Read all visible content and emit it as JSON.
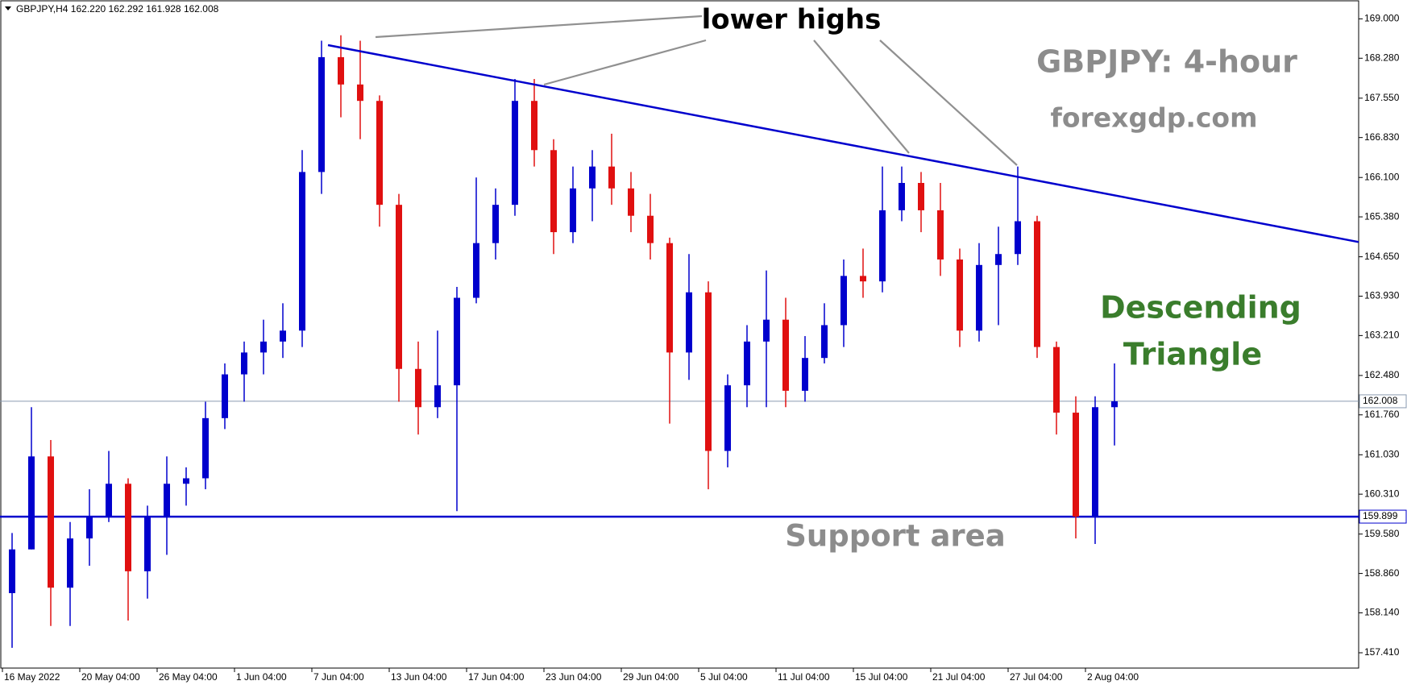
{
  "chart_data": {
    "type": "candlestick",
    "header": "GBPJPY,H4  162.220 162.292 161.928 162.008",
    "categories": [
      "16 May 2022",
      null,
      null,
      null,
      "20 May 04:00",
      null,
      null,
      null,
      "26 May 04:00",
      null,
      null,
      null,
      "1 Jun 04:00",
      null,
      null,
      null,
      "7 Jun 04:00",
      null,
      null,
      null,
      "13 Jun 04:00",
      null,
      null,
      null,
      "17 Jun 04:00",
      null,
      null,
      null,
      "23 Jun 04:00",
      null,
      null,
      null,
      "29 Jun 04:00",
      null,
      null,
      null,
      "5 Jul 04:00",
      null,
      null,
      null,
      "11 Jul 04:00",
      null,
      null,
      null,
      "15 Jul 04:00",
      null,
      null,
      null,
      "21 Jul 04:00",
      null,
      null,
      null,
      "27 Jul 04:00",
      null,
      null,
      null,
      "2 Aug 04:00",
      null
    ],
    "open": [
      158.5,
      159.3,
      161.0,
      158.6,
      159.5,
      159.9,
      160.5,
      158.9,
      159.9,
      160.5,
      160.6,
      161.7,
      162.5,
      162.9,
      163.1,
      163.3,
      166.2,
      168.3,
      167.8,
      167.5,
      165.6,
      162.6,
      161.9,
      162.3,
      163.9,
      164.9,
      165.6,
      167.5,
      166.6,
      165.1,
      165.9,
      166.3,
      165.9,
      165.4,
      164.9,
      162.9,
      164.0,
      161.1,
      162.3,
      163.1,
      163.5,
      162.2,
      162.8,
      163.4,
      164.3,
      164.2,
      165.5,
      166.0,
      165.5,
      164.6,
      163.3,
      164.5,
      164.7,
      165.3,
      163.0,
      161.8,
      159.9,
      161.9
    ],
    "high": [
      159.6,
      161.9,
      161.3,
      159.8,
      160.4,
      161.1,
      160.6,
      160.1,
      161.0,
      160.8,
      162.0,
      162.7,
      163.1,
      163.5,
      163.8,
      166.6,
      168.6,
      168.7,
      168.6,
      167.6,
      165.8,
      163.1,
      163.3,
      164.1,
      166.1,
      165.9,
      167.9,
      167.9,
      166.8,
      166.3,
      166.6,
      166.9,
      166.2,
      165.8,
      165.0,
      164.7,
      164.2,
      162.5,
      163.4,
      164.4,
      163.9,
      163.2,
      163.8,
      164.6,
      164.8,
      166.3,
      166.3,
      166.2,
      166.0,
      164.8,
      164.9,
      165.2,
      166.3,
      165.4,
      163.1,
      162.1,
      162.1,
      162.7
    ],
    "low": [
      157.5,
      159.3,
      157.9,
      157.9,
      159.0,
      159.8,
      158.0,
      158.4,
      159.2,
      160.1,
      160.4,
      161.5,
      162.0,
      162.5,
      162.8,
      163.0,
      165.8,
      167.2,
      166.8,
      165.2,
      162.0,
      161.4,
      161.7,
      160.0,
      163.8,
      164.6,
      165.4,
      166.3,
      164.7,
      164.9,
      165.3,
      165.6,
      165.1,
      164.6,
      161.6,
      162.4,
      160.4,
      160.8,
      161.9,
      161.9,
      161.9,
      162.0,
      162.7,
      163.0,
      163.9,
      164.0,
      165.3,
      165.1,
      164.3,
      163.0,
      163.1,
      163.4,
      164.5,
      162.8,
      161.4,
      159.5,
      159.4,
      161.2
    ],
    "close": [
      159.3,
      161.0,
      158.6,
      159.5,
      159.9,
      160.5,
      158.9,
      159.9,
      160.5,
      160.6,
      161.7,
      162.5,
      162.9,
      163.1,
      163.3,
      166.2,
      168.3,
      167.8,
      167.5,
      165.6,
      162.6,
      161.9,
      162.3,
      163.9,
      164.9,
      165.6,
      167.5,
      166.6,
      165.1,
      165.9,
      166.3,
      165.9,
      165.4,
      164.9,
      162.9,
      164.0,
      161.1,
      162.3,
      163.1,
      163.5,
      162.2,
      162.8,
      163.4,
      164.3,
      164.2,
      165.5,
      166.0,
      165.5,
      164.6,
      163.3,
      164.5,
      164.7,
      165.3,
      163.0,
      161.8,
      159.9,
      161.9,
      162.008
    ],
    "up_color": "#0000cd",
    "down_color": "#e01010",
    "ylim": [
      157.13,
      169.33
    ],
    "yticks": [
      {
        "value": 169,
        "label": "169.000"
      },
      {
        "value": 168.28,
        "label": "168.280"
      },
      {
        "value": 167.55,
        "label": "167.550"
      },
      {
        "value": 166.83,
        "label": "166.830"
      },
      {
        "value": 166.1,
        "label": "166.100"
      },
      {
        "value": 165.38,
        "label": "165.380"
      },
      {
        "value": 164.65,
        "label": "164.650"
      },
      {
        "value": 163.93,
        "label": "163.930"
      },
      {
        "value": 163.21,
        "label": "163.210"
      },
      {
        "value": 162.48,
        "label": "162.480"
      },
      {
        "value": 161.76,
        "label": "161.760"
      },
      {
        "value": 161.03,
        "label": "161.030"
      },
      {
        "value": 160.31,
        "label": "160.310"
      },
      {
        "value": 159.58,
        "label": "159.580"
      },
      {
        "value": 158.86,
        "label": "158.860"
      },
      {
        "value": 158.14,
        "label": "158.140"
      },
      {
        "value": 157.41,
        "label": "157.410"
      }
    ],
    "hlines": [
      {
        "value": 162.008,
        "color": "#8a9bb0"
      },
      {
        "value": 159.899,
        "color": "#0000cd"
      }
    ],
    "trendline": {
      "start": 168.52,
      "end": 164.92,
      "color": "#0000cd"
    },
    "annotations": {
      "lower_highs": "lower highs",
      "symbol": "GBPJPY: 4-hour",
      "site": "forexgdp.com",
      "pattern_1": "Descending",
      "pattern_2": "Triangle",
      "support": "Support area"
    }
  }
}
